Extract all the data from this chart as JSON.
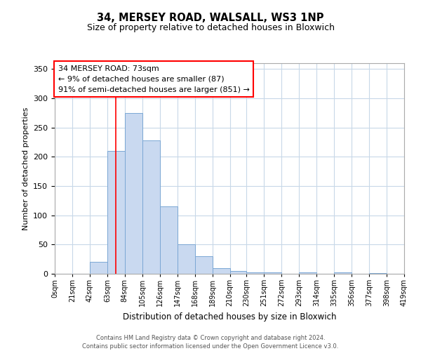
{
  "title": "34, MERSEY ROAD, WALSALL, WS3 1NP",
  "subtitle": "Size of property relative to detached houses in Bloxwich",
  "xlabel": "Distribution of detached houses by size in Bloxwich",
  "ylabel": "Number of detached properties",
  "bar_color": "#c9d9f0",
  "bar_edge_color": "#7ba7d4",
  "background_color": "#ffffff",
  "grid_color": "#c8d8e8",
  "tick_labels": [
    "0sqm",
    "21sqm",
    "42sqm",
    "63sqm",
    "84sqm",
    "105sqm",
    "126sqm",
    "147sqm",
    "168sqm",
    "189sqm",
    "210sqm",
    "230sqm",
    "251sqm",
    "272sqm",
    "293sqm",
    "314sqm",
    "335sqm",
    "356sqm",
    "377sqm",
    "398sqm",
    "419sqm"
  ],
  "bin_edges": [
    0,
    21,
    42,
    63,
    84,
    105,
    126,
    147,
    168,
    189,
    210,
    230,
    251,
    272,
    293,
    314,
    335,
    356,
    377,
    398,
    419
  ],
  "bar_heights": [
    0,
    0,
    20,
    210,
    275,
    228,
    115,
    50,
    30,
    10,
    5,
    3,
    3,
    0,
    3,
    0,
    2,
    0,
    1,
    0
  ],
  "ylim": [
    0,
    360
  ],
  "yticks": [
    0,
    50,
    100,
    150,
    200,
    250,
    300,
    350
  ],
  "property_line_x": 73,
  "annotation_title": "34 MERSEY ROAD: 73sqm",
  "annotation_line1": "← 9% of detached houses are smaller (87)",
  "annotation_line2": "91% of semi-detached houses are larger (851) →",
  "footnote1": "Contains HM Land Registry data © Crown copyright and database right 2024.",
  "footnote2": "Contains public sector information licensed under the Open Government Licence v3.0."
}
